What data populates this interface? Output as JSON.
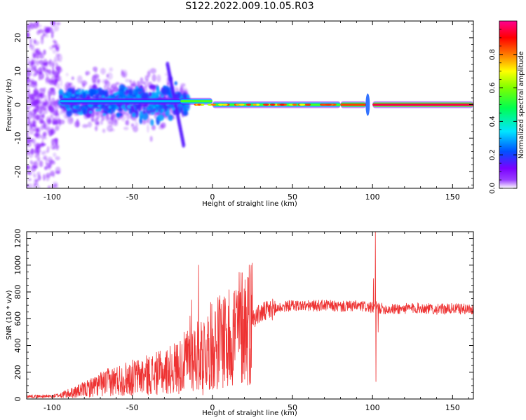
{
  "title": "S122.2022.009.10.05.R03",
  "chart_data": [
    {
      "type": "heatmap",
      "name": "spectrogram",
      "xlabel": "Height of straight line (km)",
      "ylabel": "Frequency (Hz)",
      "xlim": [
        -116,
        163
      ],
      "ylim": [
        -25,
        25
      ],
      "xticks": [
        -100,
        -50,
        0,
        50,
        100,
        150
      ],
      "xtick_labels": [
        "-100",
        "-50",
        "0",
        "50",
        "100",
        "150"
      ],
      "yticks": [
        -20,
        -10,
        0,
        10,
        20
      ],
      "ytick_labels": [
        "-20",
        "-10",
        "0",
        "10",
        "20"
      ],
      "colorbar": {
        "label": "Normalized spectral amplitude",
        "range": [
          0,
          1
        ],
        "ticks": [
          0.0,
          0.2,
          0.4,
          0.6,
          0.8
        ],
        "tick_labels": [
          "0.0",
          "0.2",
          "0.4",
          "0.6",
          "0.8"
        ],
        "colors": [
          "#ffffff",
          "#7a00ff",
          "#0050ff",
          "#00ffff",
          "#00ff00",
          "#ffff00",
          "#ff7a00",
          "#ff0000",
          "#ff0090"
        ]
      },
      "ridge_segments": [
        {
          "x_start": -95,
          "x_end": -20,
          "freq": 1.0,
          "amplitude": 0.3
        },
        {
          "x_start": -20,
          "x_end": 0,
          "freq": 1.0,
          "amplitude": 0.55
        },
        {
          "x_start": 0,
          "x_end": 80,
          "freq": 0.0,
          "amplitude": 0.55
        },
        {
          "x_start": 80,
          "x_end": 96,
          "freq": 0.0,
          "amplitude": 0.85
        },
        {
          "x_start": 100,
          "x_end": 163,
          "freq": 0.0,
          "amplitude": 0.95
        }
      ]
    },
    {
      "type": "line",
      "name": "snr",
      "xlabel": "Height of straight line (km)",
      "ylabel": "SNR (10 * v/v)",
      "xlim": [
        -116,
        163
      ],
      "ylim": [
        0,
        1250
      ],
      "xticks": [
        -100,
        -50,
        0,
        50,
        100,
        150
      ],
      "xtick_labels": [
        "-100",
        "-50",
        "0",
        "50",
        "100",
        "150"
      ],
      "yticks": [
        0,
        200,
        400,
        600,
        800,
        1000,
        1200
      ],
      "ytick_labels": [
        "0",
        "200",
        "400",
        "600",
        "800",
        "1000",
        "1200"
      ],
      "color": "#ee3333",
      "trend": {
        "x": [
          -116,
          -100,
          -90,
          -80,
          -70,
          -60,
          -50,
          -40,
          -30,
          -20,
          -12,
          -5,
          0,
          10,
          20,
          30,
          40,
          50,
          60,
          70,
          80,
          90,
          96,
          100,
          102,
          104,
          110,
          120,
          130,
          140,
          150,
          163
        ],
        "y": [
          20,
          20,
          40,
          70,
          110,
          140,
          160,
          180,
          200,
          250,
          320,
          360,
          400,
          480,
          560,
          640,
          680,
          700,
          695,
          700,
          690,
          695,
          690,
          680,
          690,
          680,
          670,
          675,
          680,
          670,
          675,
          670
        ]
      },
      "spikes": [
        {
          "x": -8.5,
          "y": 1000
        },
        {
          "x": -14,
          "y": 620
        },
        {
          "x": -13,
          "y": 740
        },
        {
          "x": -6,
          "y": 30
        },
        {
          "x": 8,
          "y": 750
        },
        {
          "x": 9.5,
          "y": 100
        },
        {
          "x": 100.5,
          "y": 900
        },
        {
          "x": 101.8,
          "y": 1250
        },
        {
          "x": 102.2,
          "y": 130
        },
        {
          "x": 103.5,
          "y": 500
        }
      ]
    }
  ]
}
